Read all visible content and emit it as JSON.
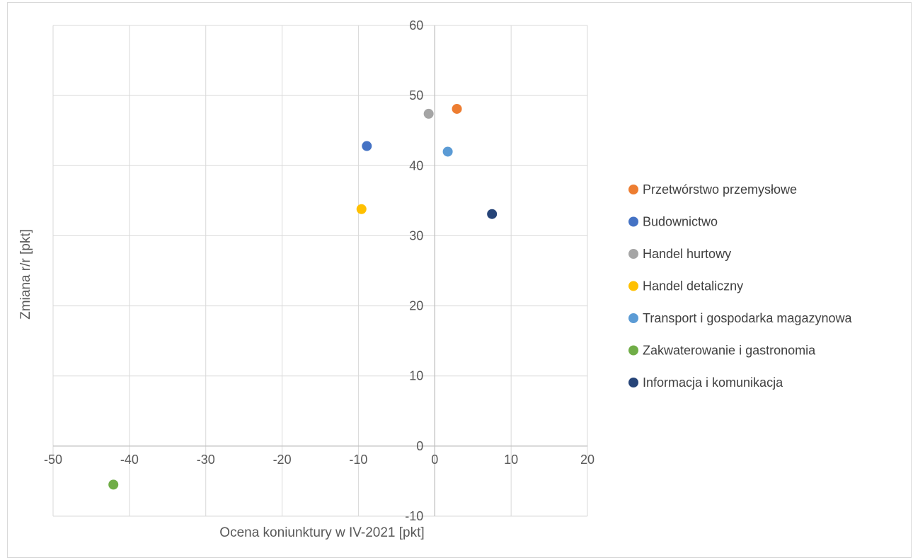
{
  "chart_data": {
    "type": "scatter",
    "xlabel": "Ocena koniunktury w IV-2021 [pkt]",
    "ylabel": "Zmiana r/r [pkt]",
    "xlim": [
      -50,
      20
    ],
    "ylim": [
      -10,
      60
    ],
    "x_ticks": [
      -50,
      -40,
      -30,
      -20,
      -10,
      0,
      10,
      20
    ],
    "y_ticks": [
      -10,
      0,
      10,
      20,
      30,
      40,
      50,
      60
    ],
    "grid": true,
    "legend_position": "right",
    "series": [
      {
        "name": "Przetwórstwo przemysłowe",
        "color": "#ED7D31",
        "x": [
          2.9
        ],
        "y": [
          48.1
        ]
      },
      {
        "name": "Budownictwo",
        "color": "#4472C4",
        "x": [
          -8.9
        ],
        "y": [
          42.8
        ]
      },
      {
        "name": "Handel hurtowy",
        "color": "#A5A5A5",
        "x": [
          -0.8
        ],
        "y": [
          47.4
        ]
      },
      {
        "name": "Handel detaliczny",
        "color": "#FFC000",
        "x": [
          -9.6
        ],
        "y": [
          33.8
        ]
      },
      {
        "name": "Transport i gospodarka magazynowa",
        "color": "#5B9BD5",
        "x": [
          1.7
        ],
        "y": [
          42.0
        ]
      },
      {
        "name": "Zakwaterowanie i gastronomia",
        "color": "#70AD47",
        "x": [
          -42.1
        ],
        "y": [
          -5.5
        ]
      },
      {
        "name": "Informacja i komunikacja",
        "color": "#264478",
        "x": [
          7.5
        ],
        "y": [
          33.1
        ]
      }
    ]
  }
}
